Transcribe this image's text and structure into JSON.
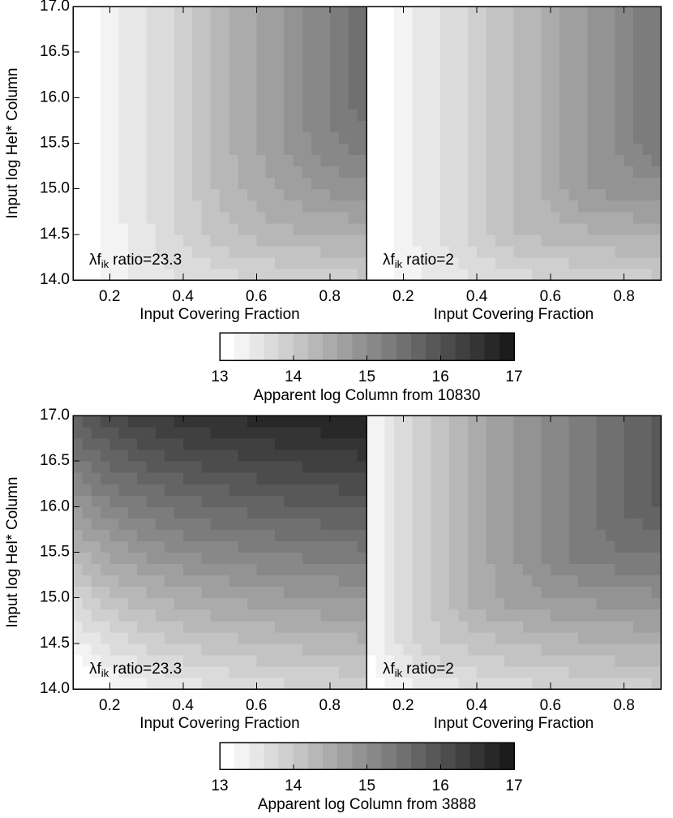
{
  "chart_data": [
    {
      "type": "contour",
      "xlabel": "Input Covering Fraction",
      "ylabel": "Input log HeI* Column",
      "annotation": [
        "λf",
        "ik",
        "ratio=23.3"
      ],
      "x": [
        0.1,
        0.2,
        0.3,
        0.4,
        0.5,
        0.6,
        0.7,
        0.8,
        0.9
      ],
      "y": [
        14,
        14.5,
        15,
        15.5,
        16,
        16.5,
        17
      ],
      "z": [
        [
          13.0,
          13.3,
          13.48,
          13.6,
          13.7,
          13.78,
          13.85,
          13.9,
          13.95
        ],
        [
          13.0,
          13.3,
          13.55,
          13.85,
          14.1,
          14.28,
          14.35,
          14.4,
          14.45
        ],
        [
          13.0,
          13.3,
          13.6,
          13.9,
          14.25,
          14.5,
          14.7,
          14.85,
          14.95
        ],
        [
          13.0,
          13.3,
          13.6,
          13.9,
          14.3,
          14.6,
          14.9,
          15.15,
          15.35
        ],
        [
          13.0,
          13.3,
          13.6,
          13.9,
          14.3,
          14.6,
          14.9,
          15.2,
          15.55
        ],
        [
          13.0,
          13.3,
          13.6,
          13.9,
          14.3,
          14.6,
          14.9,
          15.2,
          15.6
        ],
        [
          13.0,
          13.3,
          13.6,
          13.9,
          14.3,
          14.6,
          14.9,
          15.2,
          15.6
        ]
      ],
      "xlim": [
        0.1,
        0.9
      ],
      "ylim": [
        14,
        17
      ],
      "xticks": [
        0.2,
        0.4,
        0.6,
        0.8
      ],
      "yticks": [
        {
          "value": 14,
          "label": "14.0"
        },
        {
          "value": 14.5,
          "label": "14.5"
        },
        {
          "value": 15,
          "label": "15.0"
        },
        {
          "value": 15.5,
          "label": "15.5"
        },
        {
          "value": 16,
          "label": "16.0"
        },
        {
          "value": 16.5,
          "label": "16.5"
        },
        {
          "value": 17,
          "label": "17.0"
        }
      ]
    },
    {
      "type": "contour",
      "xlabel": "Input Covering Fraction",
      "annotation": [
        "λf",
        "ik",
        "ratio=2"
      ],
      "x": [
        0.1,
        0.2,
        0.3,
        0.4,
        0.5,
        0.6,
        0.7,
        0.8,
        0.9
      ],
      "y": [
        14,
        14.5,
        15,
        15.5,
        16,
        16.5,
        17
      ],
      "z": [
        [
          13.0,
          13.3,
          13.48,
          13.6,
          13.7,
          13.78,
          13.85,
          13.9,
          13.95
        ],
        [
          13.0,
          13.3,
          13.6,
          13.9,
          14.2,
          14.28,
          14.35,
          14.4,
          14.45
        ],
        [
          13.0,
          13.3,
          13.6,
          13.9,
          14.2,
          14.5,
          14.8,
          14.9,
          14.95
        ],
        [
          13.0,
          13.3,
          13.6,
          13.9,
          14.2,
          14.5,
          14.8,
          15.1,
          15.4
        ],
        [
          13.0,
          13.3,
          13.6,
          13.9,
          14.2,
          14.5,
          14.8,
          15.1,
          15.4
        ],
        [
          13.0,
          13.3,
          13.6,
          13.9,
          14.2,
          14.5,
          14.8,
          15.1,
          15.4
        ],
        [
          13.0,
          13.3,
          13.6,
          13.9,
          14.2,
          14.5,
          14.8,
          15.1,
          15.4
        ]
      ],
      "xlim": [
        0.1,
        0.9
      ],
      "ylim": [
        14,
        17
      ],
      "xticks": [
        0.2,
        0.4,
        0.6,
        0.8
      ]
    },
    {
      "type": "contour",
      "xlabel": "Input Covering Fraction",
      "ylabel": "Input log HeI* Column",
      "annotation": [
        "λf",
        "ik",
        "ratio=23.3"
      ],
      "x": [
        0.1,
        0.2,
        0.3,
        0.4,
        0.5,
        0.6,
        0.7,
        0.8,
        0.9
      ],
      "y": [
        14,
        14.5,
        15,
        15.5,
        16,
        16.5,
        17
      ],
      "z": [
        [
          12.8,
          13.15,
          13.35,
          13.5,
          13.6,
          13.68,
          13.75,
          13.8,
          13.85
        ],
        [
          13.3,
          13.65,
          13.85,
          14.0,
          14.1,
          14.18,
          14.25,
          14.3,
          14.35
        ],
        [
          13.8,
          14.15,
          14.35,
          14.5,
          14.6,
          14.68,
          14.75,
          14.8,
          14.85
        ],
        [
          14.3,
          14.65,
          14.85,
          15.0,
          15.1,
          15.18,
          15.25,
          15.3,
          15.35
        ],
        [
          14.8,
          15.15,
          15.35,
          15.5,
          15.6,
          15.68,
          15.75,
          15.8,
          15.85
        ],
        [
          15.3,
          15.65,
          15.85,
          16.0,
          16.1,
          16.18,
          16.25,
          16.3,
          16.35
        ],
        [
          15.8,
          16.15,
          16.35,
          16.5,
          16.6,
          16.68,
          16.75,
          16.8,
          16.85
        ]
      ],
      "xlim": [
        0.1,
        0.9
      ],
      "ylim": [
        14,
        17
      ],
      "xticks": [
        0.2,
        0.4,
        0.6,
        0.8
      ],
      "yticks": [
        {
          "value": 14,
          "label": "14.0"
        },
        {
          "value": 14.5,
          "label": "14.5"
        },
        {
          "value": 15,
          "label": "15.0"
        },
        {
          "value": 15.5,
          "label": "15.5"
        },
        {
          "value": 16,
          "label": "16.0"
        },
        {
          "value": 16.5,
          "label": "16.5"
        },
        {
          "value": 17,
          "label": "17.0"
        }
      ]
    },
    {
      "type": "contour",
      "xlabel": "Input Covering Fraction",
      "annotation": [
        "λf",
        "ik",
        "ratio=2"
      ],
      "x": [
        0.1,
        0.2,
        0.3,
        0.4,
        0.5,
        0.6,
        0.7,
        0.8,
        0.9
      ],
      "y": [
        14,
        14.5,
        15,
        15.5,
        16,
        16.5,
        17
      ],
      "z": [
        [
          13.0,
          13.3,
          13.48,
          13.6,
          13.7,
          13.78,
          13.85,
          13.9,
          13.95
        ],
        [
          13.2,
          13.7,
          13.98,
          14.1,
          14.2,
          14.28,
          14.35,
          14.4,
          14.45
        ],
        [
          13.2,
          13.7,
          14.1,
          14.5,
          14.7,
          14.78,
          14.85,
          14.9,
          14.95
        ],
        [
          13.2,
          13.7,
          14.1,
          14.5,
          14.8,
          15.1,
          15.35,
          15.4,
          15.45
        ],
        [
          13.2,
          13.7,
          14.1,
          14.5,
          14.8,
          15.1,
          15.35,
          15.6,
          15.85
        ],
        [
          13.2,
          13.7,
          14.1,
          14.5,
          14.8,
          15.1,
          15.35,
          15.6,
          15.85
        ],
        [
          13.2,
          13.7,
          14.1,
          14.5,
          14.8,
          15.1,
          15.35,
          15.6,
          15.85
        ]
      ],
      "xlim": [
        0.1,
        0.9
      ],
      "ylim": [
        14,
        17
      ],
      "xticks": [
        0.2,
        0.4,
        0.6,
        0.8
      ]
    }
  ],
  "colorbars": [
    {
      "label": "Apparent log Column from 10830",
      "lim": [
        13,
        17
      ],
      "ticks": [
        13,
        14,
        15,
        16,
        17
      ],
      "levels": [
        13,
        13.2,
        13.4,
        13.6,
        13.8,
        14,
        14.2,
        14.4,
        14.6,
        14.8,
        15,
        15.2,
        15.4,
        15.6,
        15.8,
        16,
        16.2,
        16.4,
        16.6,
        16.8,
        17
      ]
    },
    {
      "label": "Apparent log Column from 3888",
      "lim": [
        13,
        17
      ],
      "ticks": [
        13,
        14,
        15,
        16,
        17
      ],
      "levels": [
        13,
        13.2,
        13.4,
        13.6,
        13.8,
        14,
        14.2,
        14.4,
        14.6,
        14.8,
        15,
        15.2,
        15.4,
        15.6,
        15.8,
        16,
        16.2,
        16.4,
        16.6,
        16.8,
        17
      ]
    }
  ]
}
